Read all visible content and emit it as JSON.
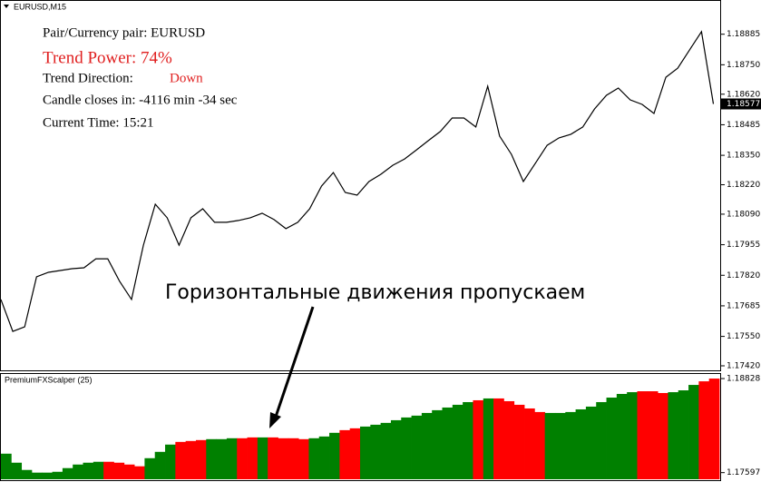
{
  "chart_data": [
    {
      "type": "line",
      "title": "EURUSD,M15",
      "color": "#000000",
      "values": [
        1.17713,
        1.17572,
        1.17592,
        1.17813,
        1.17833,
        1.17841,
        1.17849,
        1.17853,
        1.17893,
        1.17893,
        1.17793,
        1.17713,
        1.17953,
        1.18134,
        1.18074,
        1.17953,
        1.18074,
        1.18114,
        1.18054,
        1.18054,
        1.18062,
        1.18074,
        1.18094,
        1.18066,
        1.18026,
        1.18054,
        1.18114,
        1.18214,
        1.18274,
        1.18186,
        1.18174,
        1.18234,
        1.18266,
        1.18306,
        1.18334,
        1.18374,
        1.18415,
        1.18455,
        1.18515,
        1.18515,
        1.18475,
        1.18655,
        1.18435,
        1.18354,
        1.18234,
        1.18314,
        1.18394,
        1.18427,
        1.18443,
        1.18475,
        1.18555,
        1.18615,
        1.18647,
        1.18595,
        1.18575,
        1.18535,
        1.18695,
        1.18735,
        1.18816,
        1.18896,
        1.18577
      ],
      "ylim": [
        1.174,
        1.1898
      ],
      "yticks": [
        1.18885,
        {
          "value": 1.1875,
          "label": "1.18750"
        },
        {
          "value": 1.1862,
          "label": "1.18620"
        },
        1.18485,
        {
          "value": 1.1835,
          "label": "1.18350"
        },
        {
          "value": 1.1822,
          "label": "1.18220"
        },
        {
          "value": 1.1809,
          "label": "1.18090"
        },
        1.17955,
        {
          "value": 1.1782,
          "label": "1.17820"
        },
        1.17685,
        {
          "value": 1.1755,
          "label": "1.17550"
        },
        {
          "value": 1.1742,
          "label": "1.17420"
        }
      ],
      "last_price": 1.18577,
      "info": {
        "pair_label": "Pair/Currency pair: EURUSD",
        "trend_power": "Trend Power: 74%",
        "trend_direction_label": "Trend Direction:",
        "trend_direction": "Down",
        "candle_closes": "Candle closes in: -4116 min -34 sec",
        "current_time": "Current Time: 15:21"
      },
      "annotation": "Горизонтальные движения пропускаем"
    },
    {
      "type": "bar",
      "title": "PremiumFXScalper (25)",
      "values": [
        1.17845,
        1.17727,
        1.17632,
        1.17597,
        1.17597,
        1.17608,
        1.17656,
        1.17703,
        1.17727,
        1.17739,
        1.17739,
        1.17727,
        1.17703,
        1.1768,
        1.17786,
        1.17869,
        1.17964,
        1.17999,
        1.18011,
        1.18023,
        1.18035,
        1.18035,
        1.18047,
        1.18047,
        1.18058,
        1.18058,
        1.18058,
        1.18047,
        1.18047,
        1.18035,
        1.18047,
        1.1807,
        1.18118,
        1.18153,
        1.18177,
        1.182,
        1.18224,
        1.18248,
        1.18283,
        1.18319,
        1.18343,
        1.18378,
        1.18414,
        1.18449,
        1.18485,
        1.1852,
        1.18544,
        1.18568,
        1.18568,
        1.18532,
        1.18485,
        1.18437,
        1.1839,
        1.18378,
        1.18378,
        1.1839,
        1.18425,
        1.18461,
        1.1852,
        1.18579,
        1.18627,
        1.1865,
        1.18662,
        1.18662,
        1.18639,
        1.1865,
        1.18674,
        1.18745,
        1.18792,
        1.18828
      ],
      "colors": [
        "#008000",
        "#008000",
        "#008000",
        "#008000",
        "#008000",
        "#008000",
        "#008000",
        "#008000",
        "#008000",
        "#008000",
        "#ff0000",
        "#ff0000",
        "#ff0000",
        "#ff0000",
        "#008000",
        "#008000",
        "#008000",
        "#ff0000",
        "#ff0000",
        "#ff0000",
        "#008000",
        "#008000",
        "#008000",
        "#ff0000",
        "#ff0000",
        "#008000",
        "#ff0000",
        "#ff0000",
        "#ff0000",
        "#ff0000",
        "#008000",
        "#008000",
        "#008000",
        "#ff0000",
        "#ff0000",
        "#008000",
        "#008000",
        "#008000",
        "#008000",
        "#008000",
        "#008000",
        "#008000",
        "#008000",
        "#008000",
        "#008000",
        "#008000",
        "#ff0000",
        "#008000",
        "#ff0000",
        "#ff0000",
        "#ff0000",
        "#ff0000",
        "#ff0000",
        "#008000",
        "#008000",
        "#008000",
        "#008000",
        "#008000",
        "#008000",
        "#008000",
        "#008000",
        "#008000",
        "#ff0000",
        "#ff0000",
        "#ff0000",
        "#008000",
        "#008000",
        "#008000",
        "#ff0000",
        "#ff0000"
      ],
      "ylim": [
        1.1751,
        1.189
      ],
      "yticks": [
        1.18828,
        1.17597
      ]
    }
  ]
}
